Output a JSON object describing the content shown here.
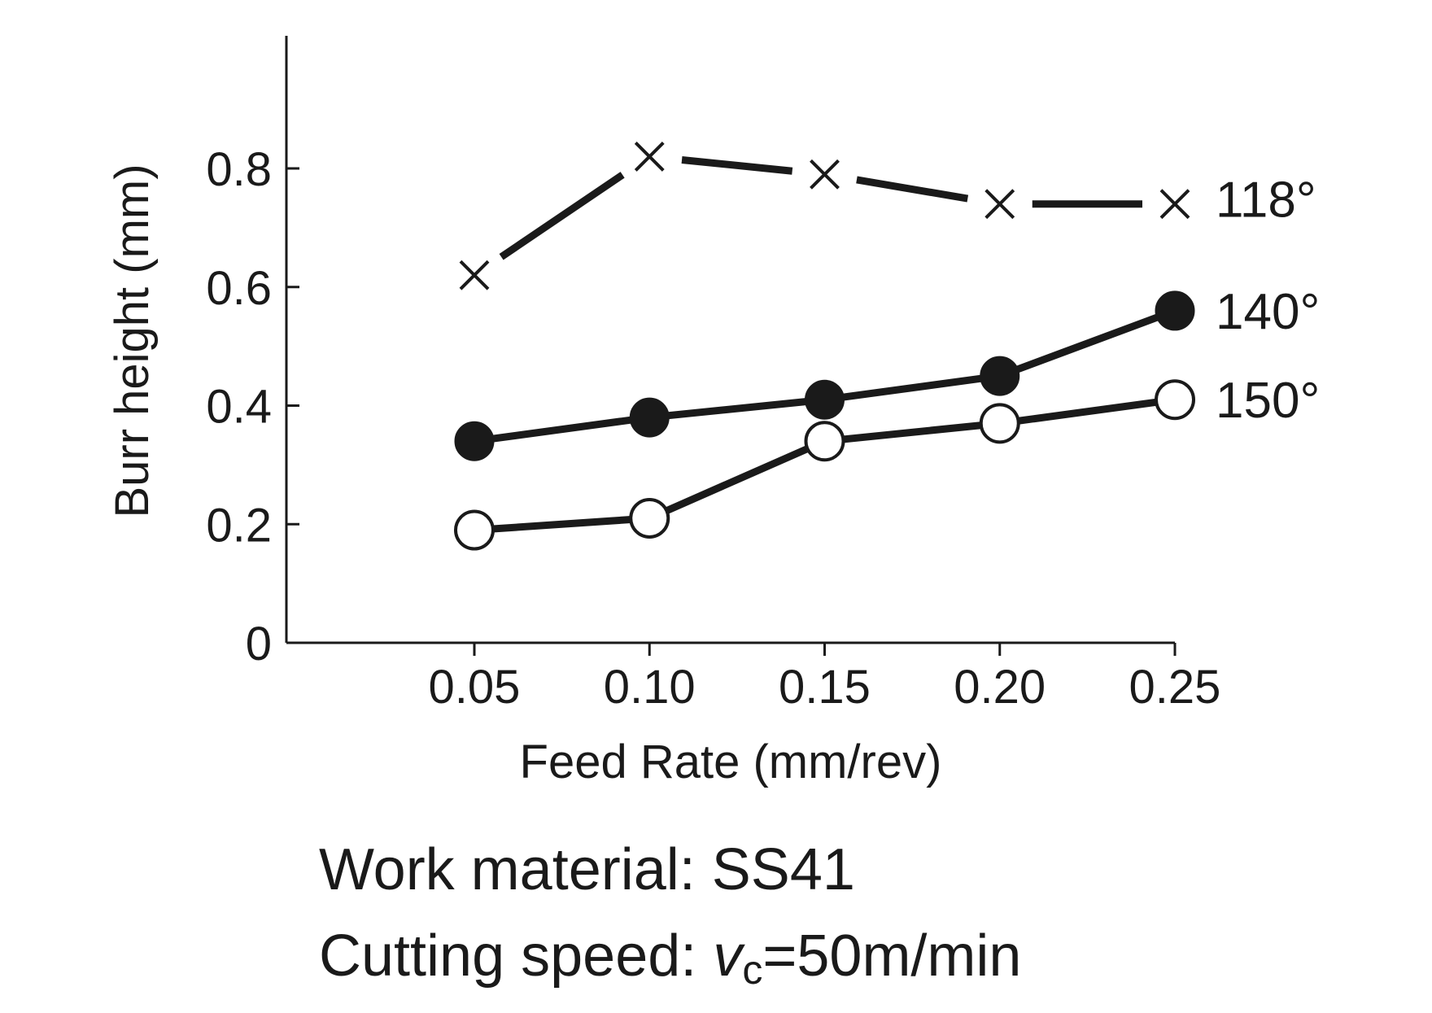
{
  "chart_data": {
    "type": "line",
    "x": [
      0.05,
      0.1,
      0.15,
      0.2,
      0.25
    ],
    "x_tick_labels": [
      "0.05",
      "0.10",
      "0.15",
      "0.20",
      "0.25"
    ],
    "y_ticks": [
      0,
      0.2,
      0.4,
      0.6,
      0.8
    ],
    "y_tick_labels": [
      "0",
      "0.2",
      "0.4",
      "0.6",
      "0.8"
    ],
    "xlabel": "Feed Rate (mm/rev)",
    "ylabel": "Burr height (mm)",
    "ylim": [
      0,
      1.0
    ],
    "xlim": [
      0,
      0.25
    ],
    "grid": false,
    "legend": "inline labels at right end of each line",
    "series": [
      {
        "name": "118°",
        "marker": "cross",
        "values": [
          0.62,
          0.82,
          0.79,
          0.74,
          0.74
        ]
      },
      {
        "name": "140°",
        "marker": "filled-circle",
        "values": [
          0.34,
          0.38,
          0.41,
          0.45,
          0.56
        ]
      },
      {
        "name": "150°",
        "marker": "open-circle",
        "values": [
          0.19,
          0.21,
          0.34,
          0.37,
          0.41
        ]
      }
    ],
    "line_color": "#1a1a1a"
  },
  "notes": {
    "material_label": "Work material: SS41",
    "speed_prefix": "Cutting speed: ",
    "speed_var": "v",
    "speed_sub": "c",
    "speed_value": "=50m/min"
  }
}
